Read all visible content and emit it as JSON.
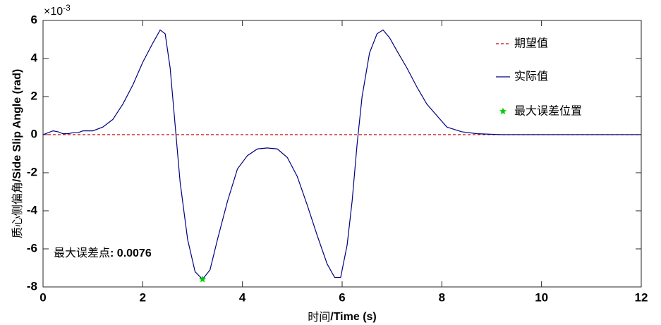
{
  "chart_data": {
    "type": "line",
    "xlabel_cn": "时间",
    "xlabel_en": "/Time (s)",
    "ylabel_cn": "质心侧偏角",
    "ylabel_en": "/Side Slip Angle (rad)",
    "y_scale_base": "×10",
    "y_scale_exponent": "-3",
    "annotation_text": "最大误差点",
    "annotation_value": ": 0.0076",
    "xlim": [
      0,
      12
    ],
    "xticks": [
      0,
      2,
      4,
      6,
      8,
      10,
      12
    ],
    "ylim": [
      -8,
      6
    ],
    "yticks": [
      -8,
      -6,
      -4,
      -2,
      0,
      2,
      4,
      6
    ],
    "grid": false,
    "legend": "top-right",
    "series": [
      {
        "name": "期望值",
        "color": "#cc0000",
        "style": "dashed",
        "x": [
          0,
          12
        ],
        "values": [
          0,
          0
        ]
      },
      {
        "name": "实际值",
        "color": "#000080",
        "style": "solid",
        "x": [
          0,
          0.1,
          0.2,
          0.3,
          0.4,
          0.5,
          0.6,
          0.7,
          0.8,
          1.0,
          1.2,
          1.4,
          1.6,
          1.8,
          2.0,
          2.2,
          2.35,
          2.45,
          2.55,
          2.65,
          2.75,
          2.9,
          3.05,
          3.2,
          3.35,
          3.5,
          3.7,
          3.9,
          4.1,
          4.3,
          4.5,
          4.7,
          4.9,
          5.1,
          5.3,
          5.5,
          5.7,
          5.85,
          5.97,
          6.1,
          6.2,
          6.3,
          6.4,
          6.55,
          6.7,
          6.82,
          6.95,
          7.1,
          7.3,
          7.5,
          7.7,
          7.9,
          8.1,
          8.4,
          8.7,
          9.2,
          12
        ],
        "values": [
          0,
          0.1,
          0.2,
          0.15,
          0.05,
          0.05,
          0.1,
          0.1,
          0.2,
          0.2,
          0.4,
          0.8,
          1.6,
          2.6,
          3.8,
          4.8,
          5.5,
          5.3,
          3.5,
          0.5,
          -2.5,
          -5.5,
          -7.2,
          -7.6,
          -7.1,
          -5.5,
          -3.5,
          -1.8,
          -1.1,
          -0.75,
          -0.7,
          -0.75,
          -1.2,
          -2.2,
          -3.7,
          -5.3,
          -6.8,
          -7.5,
          -7.5,
          -5.8,
          -3.5,
          -0.5,
          2.0,
          4.3,
          5.3,
          5.5,
          5.1,
          4.4,
          3.5,
          2.5,
          1.6,
          1.0,
          0.4,
          0.15,
          0.05,
          0,
          0
        ]
      },
      {
        "name": "最大误差位置",
        "color": "#00cc00",
        "style": "marker",
        "x": [
          3.2
        ],
        "values": [
          -7.6
        ]
      }
    ]
  }
}
